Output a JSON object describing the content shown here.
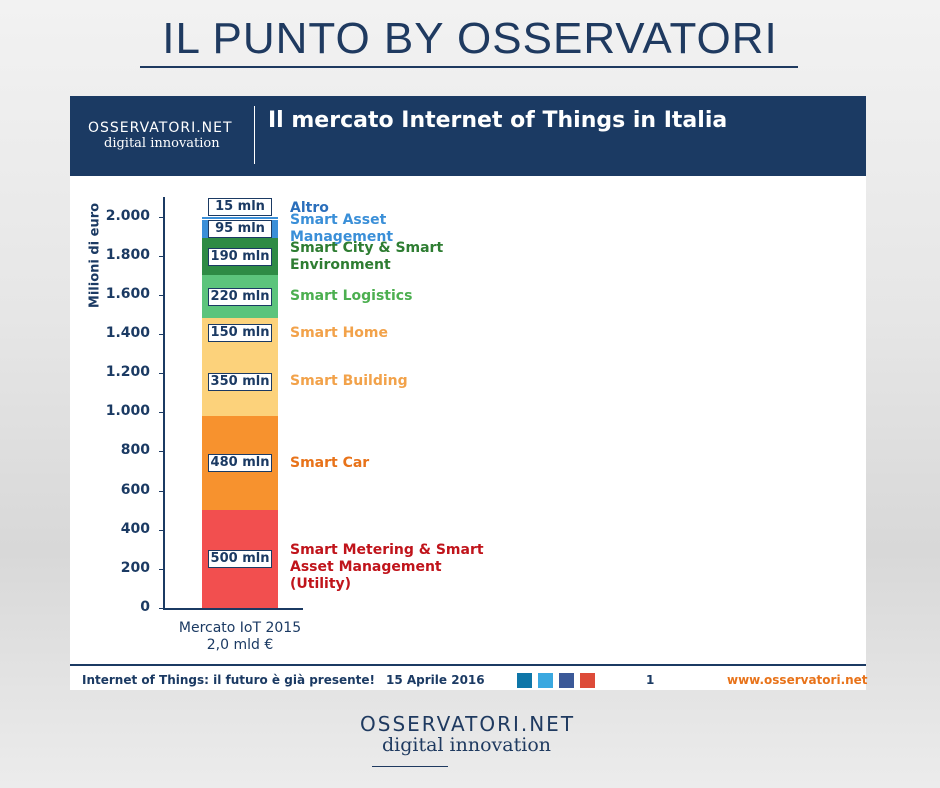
{
  "header": {
    "title": "IL PUNTO BY OSSERVATORI"
  },
  "logo": {
    "name": "OSSERVATORI.NET",
    "tagline": "digital innovation"
  },
  "slide_title": "Il mercato Internet of Things in Italia",
  "chart_data": {
    "type": "bar",
    "stacked": true,
    "y_label": "Milioni di euro",
    "categories": [
      "Mercato IoT 2015"
    ],
    "category_sublabels": [
      "2,0 mld €"
    ],
    "ylim": [
      0,
      2100
    ],
    "yticks": [
      0,
      200,
      400,
      600,
      800,
      {
        "value": 1000,
        "label": "1.000"
      },
      {
        "value": 1200,
        "label": "1.200"
      },
      {
        "value": 1400,
        "label": "1.400"
      },
      {
        "value": 1600,
        "label": "1.600"
      },
      {
        "value": 1800,
        "label": "1.800"
      },
      {
        "value": 2000,
        "label": "2.000"
      }
    ],
    "series": [
      {
        "name": "Smart Metering & Smart Asset Management (Utility)",
        "color": "#f24f4f",
        "label_color": "#c0141b",
        "values": [
          500
        ],
        "value_labels": [
          "500 mln"
        ]
      },
      {
        "name": "Smart Car",
        "color": "#f7922e",
        "label_color": "#e8731a",
        "values": [
          480
        ],
        "value_labels": [
          "480 mln"
        ]
      },
      {
        "name": "Smart Building",
        "color": "#fcd27b",
        "label_color": "#f2a24a",
        "values": [
          350
        ],
        "value_labels": [
          "350 mln"
        ]
      },
      {
        "name": "Smart Home",
        "color": "#fcd27b",
        "label_color": "#f2a24a",
        "values": [
          150
        ],
        "value_labels": [
          "150 mln"
        ]
      },
      {
        "name": "Smart Logistics",
        "color": "#5cc47c",
        "label_color": "#4caf50",
        "values": [
          220
        ],
        "value_labels": [
          "220 mln"
        ]
      },
      {
        "name": "Smart City & Smart Environment",
        "color": "#2e8b45",
        "label_color": "#2e7d32",
        "values": [
          190
        ],
        "value_labels": [
          "190 mln"
        ]
      },
      {
        "name": "Smart Asset Management",
        "color": "#3a8fd8",
        "label_color": "#3a8fd8",
        "values": [
          95
        ],
        "value_labels": [
          "95 mln"
        ]
      },
      {
        "name": "Altro",
        "color": "#ffffff",
        "outline": "#3a8fd8",
        "label_color": "#2a6ebb",
        "values": [
          15
        ],
        "value_labels": [
          "15 mln"
        ]
      }
    ]
  },
  "footer": {
    "tagline": "Internet of Things: il futuro è già presente!",
    "date": "15 Aprile 2016",
    "page": "1",
    "url": "www.osservatori.net"
  }
}
